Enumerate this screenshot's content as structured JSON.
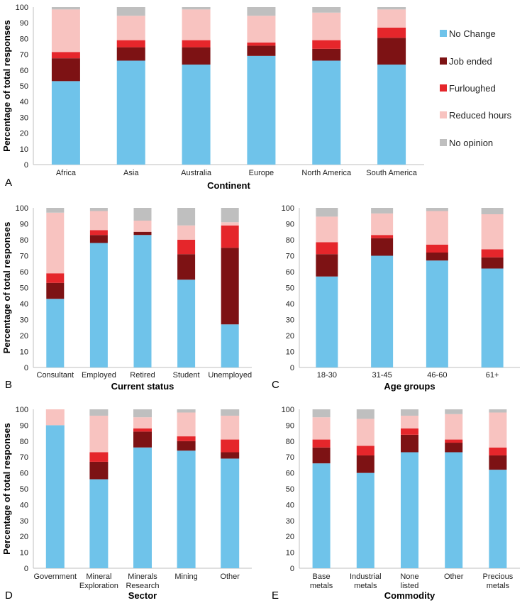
{
  "colors": {
    "No Change": "#6fc3ea",
    "Job ended": "#7d1214",
    "Furloughed": "#e5262b",
    "Reduced hours": "#f8c3c0",
    "No opinion": "#bfbfbf"
  },
  "legend": [
    "No Change",
    "Job ended",
    "Furloughed",
    "Reduced hours",
    "No opinion"
  ],
  "ylabel": "Percentage of total responses",
  "yticks": [
    0,
    10,
    20,
    30,
    40,
    50,
    60,
    70,
    80,
    90,
    100
  ],
  "chart_data": [
    {
      "type": "bar",
      "stacked": true,
      "panel": "A",
      "xlabel": "Continent",
      "ylim": [
        0,
        100
      ],
      "categories": [
        "Africa",
        "Asia",
        "Australia",
        "Europe",
        "North America",
        "South America"
      ],
      "series": [
        {
          "name": "No Change",
          "values": [
            53,
            66,
            63.5,
            69,
            66,
            63.5
          ]
        },
        {
          "name": "Job ended",
          "values": [
            14.5,
            8.5,
            11,
            6.5,
            7.5,
            17
          ]
        },
        {
          "name": "Furloughed",
          "values": [
            4,
            4.5,
            4.5,
            2,
            5.5,
            6.5
          ]
        },
        {
          "name": "Reduced hours",
          "values": [
            27,
            15.5,
            19.5,
            17,
            17.5,
            11.5
          ]
        },
        {
          "name": "No opinion",
          "values": [
            1.5,
            5.5,
            1.5,
            5.5,
            3.5,
            1.5
          ]
        }
      ]
    },
    {
      "type": "bar",
      "stacked": true,
      "panel": "B",
      "xlabel": "Current status",
      "ylim": [
        0,
        100
      ],
      "categories": [
        "Consultant",
        "Employed",
        "Retired",
        "Student",
        "Unemployed"
      ],
      "series": [
        {
          "name": "No Change",
          "values": [
            43,
            78,
            83,
            55,
            27
          ]
        },
        {
          "name": "Job ended",
          "values": [
            10,
            5,
            2,
            16,
            48
          ]
        },
        {
          "name": "Furloughed",
          "values": [
            6,
            3,
            0,
            9,
            14
          ]
        },
        {
          "name": "Reduced hours",
          "values": [
            38,
            12,
            7,
            9,
            2
          ]
        },
        {
          "name": "No opinion",
          "values": [
            3,
            2,
            8,
            11,
            9
          ]
        }
      ]
    },
    {
      "type": "bar",
      "stacked": true,
      "panel": "C",
      "xlabel": "Age groups",
      "ylim": [
        0,
        100
      ],
      "categories": [
        "18-30",
        "31-45",
        "46-60",
        "61+"
      ],
      "series": [
        {
          "name": "No Change",
          "values": [
            57,
            70,
            67,
            62
          ]
        },
        {
          "name": "Job ended",
          "values": [
            14,
            11,
            5,
            7
          ]
        },
        {
          "name": "Furloughed",
          "values": [
            7.5,
            2,
            5,
            5
          ]
        },
        {
          "name": "Reduced hours",
          "values": [
            16,
            13.5,
            21,
            22
          ]
        },
        {
          "name": "No opinion",
          "values": [
            5.5,
            3.5,
            2,
            4
          ]
        }
      ]
    },
    {
      "type": "bar",
      "stacked": true,
      "panel": "D",
      "xlabel": "Sector",
      "ylim": [
        0,
        100
      ],
      "categories": [
        "Government",
        "Mineral Exploration",
        "Minerals Research",
        "Mining",
        "Other"
      ],
      "series": [
        {
          "name": "No Change",
          "values": [
            90,
            56,
            76,
            74,
            69
          ]
        },
        {
          "name": "Job ended",
          "values": [
            0,
            11,
            10,
            6,
            4
          ]
        },
        {
          "name": "Furloughed",
          "values": [
            0,
            6,
            2,
            3,
            8
          ]
        },
        {
          "name": "Reduced hours",
          "values": [
            10,
            23,
            7,
            15,
            15
          ]
        },
        {
          "name": "No opinion",
          "values": [
            0,
            4,
            5,
            2,
            4
          ]
        }
      ]
    },
    {
      "type": "bar",
      "stacked": true,
      "panel": "E",
      "xlabel": "Commodity",
      "ylim": [
        0,
        100
      ],
      "categories": [
        "Base metals",
        "Industrial metals",
        "None listed",
        "Other",
        "Precious metals"
      ],
      "series": [
        {
          "name": "No Change",
          "values": [
            66,
            60,
            73,
            73,
            62
          ]
        },
        {
          "name": "Job ended",
          "values": [
            10,
            11,
            11,
            6,
            9
          ]
        },
        {
          "name": "Furloughed",
          "values": [
            5,
            6,
            4,
            2,
            5
          ]
        },
        {
          "name": "Reduced hours",
          "values": [
            14,
            17,
            8,
            16,
            22
          ]
        },
        {
          "name": "No opinion",
          "values": [
            5,
            6,
            4,
            3,
            2
          ]
        }
      ]
    }
  ]
}
